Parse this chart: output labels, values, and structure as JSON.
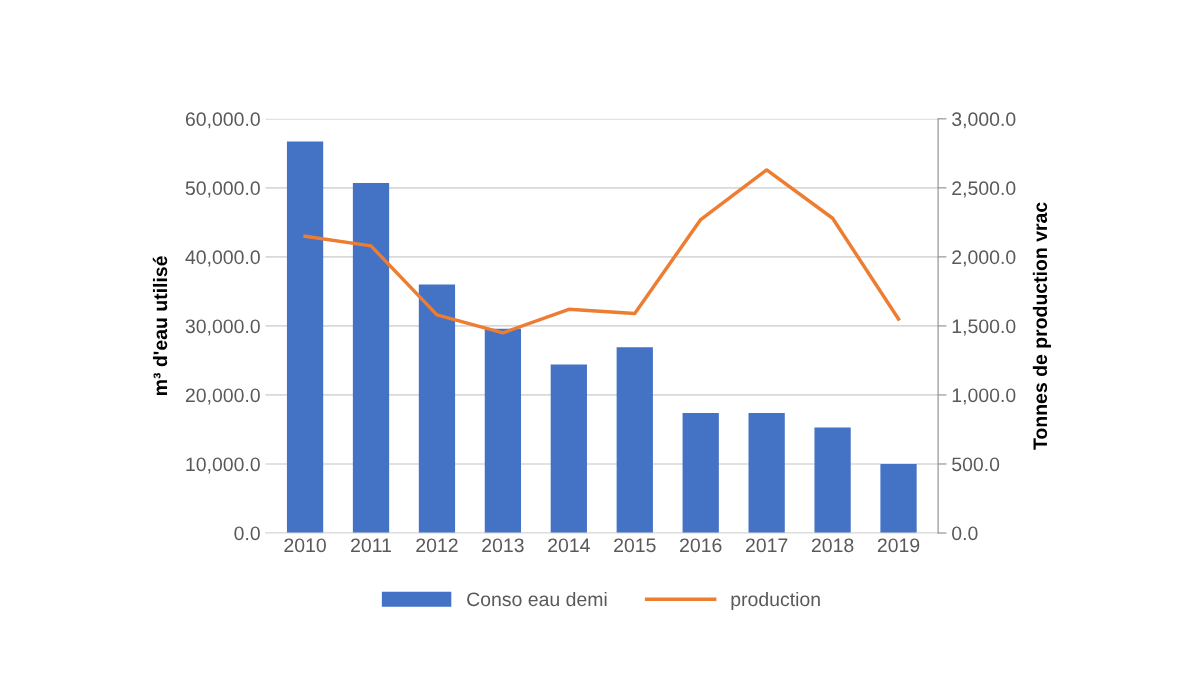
{
  "chart_data": {
    "type": "bar",
    "categories": [
      "2010",
      "2011",
      "2012",
      "2013",
      "2014",
      "2015",
      "2016",
      "2017",
      "2018",
      "2019"
    ],
    "series": [
      {
        "name": "Conso eau demi",
        "color": "#4472c4",
        "values": [
          56700,
          50700,
          36000,
          29600,
          24400,
          26900,
          17400,
          17400,
          15300,
          10000
        ]
      },
      {
        "name": "production",
        "color": "#ed7d31",
        "type": "line",
        "axis": "y2",
        "values": [
          2150,
          2080,
          1580,
          1450,
          1620,
          1590,
          2270,
          2630,
          2280,
          1550
        ]
      }
    ],
    "ylabel": "m³ d'eau utilisé",
    "y2label": "Tonnes de production vrac",
    "ylim": [
      0,
      60000
    ],
    "yticks": [
      {
        "value": 0,
        "label": "0.0"
      },
      {
        "value": 10000,
        "label": "10,000.0"
      },
      {
        "value": 20000,
        "label": "20,000.0"
      },
      {
        "value": 30000,
        "label": "30,000.0"
      },
      {
        "value": 40000,
        "label": "40,000.0"
      },
      {
        "value": 50000,
        "label": "50,000.0"
      },
      {
        "value": 60000,
        "label": "60,000.0"
      }
    ],
    "y2lim": [
      0,
      3000
    ],
    "y2ticks": [
      {
        "value": 0,
        "label": "0.0"
      },
      {
        "value": 500,
        "label": "500.0"
      },
      {
        "value": 1000,
        "label": "1,000.0"
      },
      {
        "value": 1500,
        "label": "1,500.0"
      },
      {
        "value": 2000,
        "label": "2,000.0"
      },
      {
        "value": 2500,
        "label": "2,500.0"
      },
      {
        "value": 3000,
        "label": "3,000.0"
      }
    ],
    "grid": "y",
    "legend": "bottom"
  }
}
